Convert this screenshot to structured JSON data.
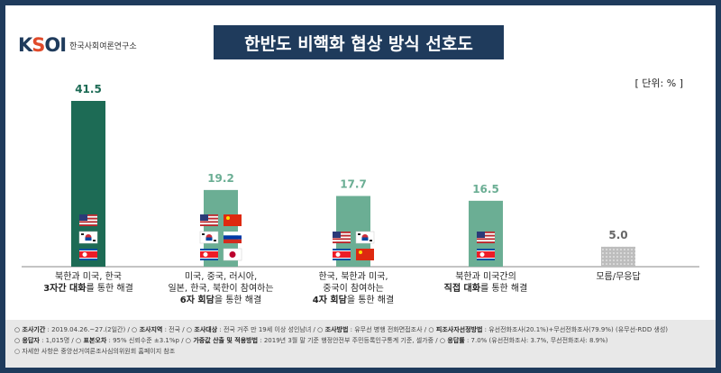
{
  "header": {
    "logo_text": "KSOI",
    "logo_sub": "한국사회여론연구소",
    "title": "한반도 비핵화 협상 방식 선호도",
    "unit": "[ 단위: % ]"
  },
  "chart_data": {
    "type": "bar",
    "title": "한반도 비핵화 협상 방식 선호도",
    "ylim": [
      0,
      41.5
    ],
    "categories": [
      {
        "lines": [
          "북한과 미국, 한국",
          "3자간 대화를 통한 해결"
        ],
        "bold": "3자간 대화"
      },
      {
        "lines": [
          "미국, 중국, 러시아,",
          "일본, 한국, 북한이 참여하는",
          "6자 회담을 통한 해결"
        ],
        "bold": "6자 회담"
      },
      {
        "lines": [
          "한국, 북한과 미국,",
          "중국이 참여하는",
          "4자 회담을 통한 해결"
        ],
        "bold": "4자 회담"
      },
      {
        "lines": [
          "북한과 미국간의",
          "직접 대화를 통한 해결"
        ],
        "bold": "직접 대화"
      },
      {
        "lines": [
          "모름/무응답"
        ],
        "bold": ""
      }
    ],
    "values": [
      41.5,
      19.2,
      17.7,
      16.5,
      5.0
    ],
    "value_labels": [
      "41.5",
      "19.2",
      "17.7",
      "16.5",
      "5.0"
    ],
    "colors": [
      "#1d6b55",
      "#6bae94",
      "#6bae94",
      "#6bae94",
      "#c8c8c8"
    ],
    "flags": [
      [
        [
          "us"
        ],
        [
          "kr"
        ],
        [
          "kp"
        ]
      ],
      [
        [
          "us",
          "cn"
        ],
        [
          "kr",
          "ru"
        ],
        [
          "kp",
          "jp"
        ]
      ],
      [
        [
          "us",
          "kr"
        ],
        [
          "kp",
          "cn"
        ]
      ],
      [
        [
          "us"
        ],
        [
          "kp"
        ]
      ],
      []
    ]
  },
  "footer": {
    "line1": [
      {
        "k": "조사기간",
        "v": ": 2019.04.26.~27.(2일간)"
      },
      {
        "k": "조사지역",
        "v": ": 전국"
      },
      {
        "k": "조사대상",
        "v": ": 전국 거주 만 19세 이상 성인남녀"
      },
      {
        "k": "조사방법",
        "v": ": 유무선 병행 전화면접조사"
      },
      {
        "k": "피조사자선정방법",
        "v": ": 유선전화조사(20.1%)+무선전화조사(79.9%) (유무선-RDD 생성)"
      }
    ],
    "line2": [
      {
        "k": "응답자",
        "v": ": 1,015명"
      },
      {
        "k": "표본오차",
        "v": ": 95% 신뢰수준 ±3.1%p"
      },
      {
        "k": "가중값 산출 및 적용방법",
        "v": ": 2019년 3월 말 기준 행정안전부 주민등록인구통계 기준, 셀가중"
      },
      {
        "k": "응답률",
        "v": ": 7.0% (유선전화조사: 3.7%, 무선전화조사: 8.9%)"
      }
    ],
    "line3": "자세한 사항은 중앙선거여론조사심의위원회 홈페이지 참조"
  }
}
